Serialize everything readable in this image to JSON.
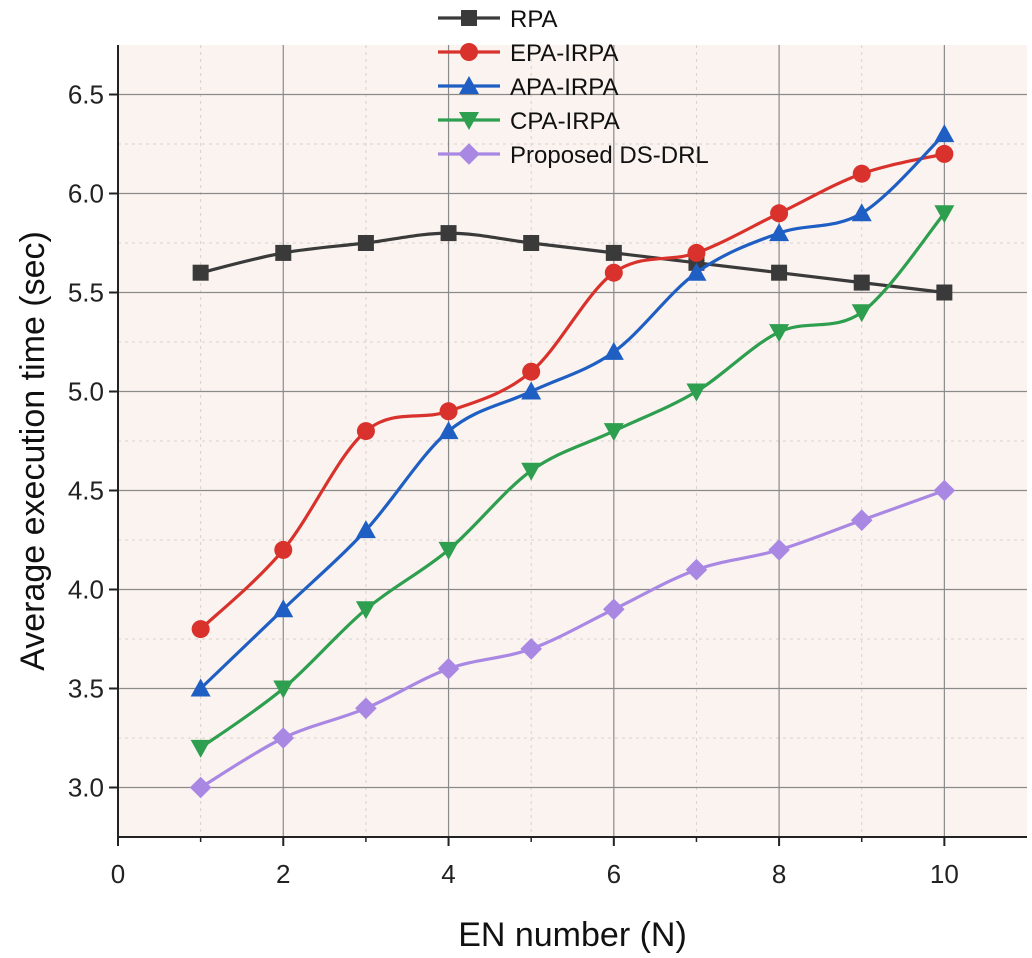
{
  "chart_data": {
    "type": "line",
    "title": "",
    "xlabel": "EN number (N)",
    "ylabel": "Average execution time (sec)",
    "xlim": [
      0,
      11
    ],
    "ylim": [
      2.75,
      6.75
    ],
    "xticks": [
      0,
      2,
      4,
      6,
      8,
      10
    ],
    "xtick_labels": [
      "0",
      "2",
      "4",
      "6",
      "8",
      "10"
    ],
    "yticks": [
      3.0,
      3.5,
      4.0,
      4.5,
      5.0,
      5.5,
      6.0,
      6.5
    ],
    "ytick_labels": [
      "3.0",
      "3.5",
      "4.0",
      "4.5",
      "5.0",
      "5.5",
      "6.0",
      "6.5"
    ],
    "grid": true,
    "legend_position": "top-center",
    "x": [
      1,
      2,
      3,
      4,
      5,
      6,
      7,
      8,
      9,
      10
    ],
    "series": [
      {
        "name": "RPA",
        "marker": "square",
        "color": "#3a3a3a",
        "values": [
          5.6,
          5.7,
          5.75,
          5.8,
          5.75,
          5.7,
          5.65,
          5.6,
          5.55,
          5.5
        ]
      },
      {
        "name": "EPA-IRPA",
        "marker": "circle",
        "color": "#d9312b",
        "values": [
          3.8,
          4.2,
          4.8,
          4.9,
          5.1,
          5.6,
          5.7,
          5.9,
          6.1,
          6.2
        ]
      },
      {
        "name": "APA-IRPA",
        "marker": "triangle-up",
        "color": "#1f5fc4",
        "values": [
          3.5,
          3.9,
          4.3,
          4.8,
          5.0,
          5.2,
          5.6,
          5.8,
          5.9,
          6.3
        ]
      },
      {
        "name": "CPA-IRPA",
        "marker": "triangle-down",
        "color": "#2e9e4f",
        "values": [
          3.2,
          3.5,
          3.9,
          4.2,
          4.6,
          4.8,
          5.0,
          5.3,
          5.4,
          5.9
        ]
      },
      {
        "name": "Proposed DS-DRL",
        "marker": "diamond",
        "color": "#a988e3",
        "values": [
          3.0,
          3.25,
          3.4,
          3.6,
          3.7,
          3.9,
          4.1,
          4.2,
          4.35,
          4.5
        ]
      }
    ]
  },
  "style": {
    "plot_bg": "#fbf3ef",
    "grid_major": "#8a8a8a",
    "grid_minor": "#d8d0cc",
    "axis": "#222222"
  }
}
